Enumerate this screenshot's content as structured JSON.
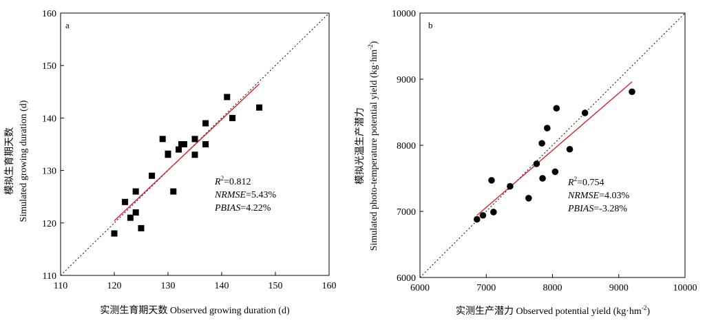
{
  "chart_data": [
    {
      "type": "scatter",
      "panel_label": "a",
      "xlabel_cn": "实测生育期天数",
      "xlabel_en": "Observed growing duration (d)",
      "ylabel_cn": "模拟生育期天数",
      "ylabel_en": "Simulated growing duration (d)",
      "xlim": [
        110,
        160
      ],
      "ylim": [
        110,
        160
      ],
      "xticks": [
        110,
        120,
        130,
        140,
        150,
        160
      ],
      "yticks": [
        110,
        120,
        130,
        140,
        150,
        160
      ],
      "marker": "square",
      "points": [
        {
          "x": 120,
          "y": 118
        },
        {
          "x": 122,
          "y": 124
        },
        {
          "x": 123,
          "y": 121
        },
        {
          "x": 124,
          "y": 126
        },
        {
          "x": 124,
          "y": 122
        },
        {
          "x": 125,
          "y": 119
        },
        {
          "x": 127,
          "y": 129
        },
        {
          "x": 129,
          "y": 136
        },
        {
          "x": 130,
          "y": 133
        },
        {
          "x": 130,
          "y": 133.2
        },
        {
          "x": 131,
          "y": 126
        },
        {
          "x": 132,
          "y": 134
        },
        {
          "x": 132.5,
          "y": 135
        },
        {
          "x": 133,
          "y": 135
        },
        {
          "x": 135,
          "y": 136
        },
        {
          "x": 135,
          "y": 133
        },
        {
          "x": 137,
          "y": 139
        },
        {
          "x": 137,
          "y": 135
        },
        {
          "x": 141,
          "y": 144
        },
        {
          "x": 142,
          "y": 140
        },
        {
          "x": 147,
          "y": 142
        }
      ],
      "fit_line": {
        "x1": 120,
        "y1": 120.4,
        "x2": 147,
        "y2": 146.5,
        "color": "#e0202a"
      },
      "one_to_one": {
        "from": 110,
        "to": 160
      },
      "stats": {
        "r2_label": "R",
        "r2_sup": "2",
        "r2_value": "=0.812",
        "nrmse_label": "NRMSE",
        "nrmse_value": "=5.43%",
        "pbias_label": "PBIAS",
        "pbias_value": "=4.22%"
      }
    },
    {
      "type": "scatter",
      "panel_label": "b",
      "xlabel_cn": "实测生产潜力",
      "xlabel_en": "Observed potential yield (kg·hm",
      "xlabel_sup": "-2",
      "xlabel_close": ")",
      "ylabel_cn": "模拟光温生产潜力",
      "ylabel_en": "Simulated photo-temperature potential yield (kg·hm",
      "ylabel_sup": "-2",
      "ylabel_close": ")",
      "xlim": [
        6000,
        10000
      ],
      "ylim": [
        6000,
        10000
      ],
      "xticks": [
        6000,
        7000,
        8000,
        9000,
        10000
      ],
      "yticks": [
        6000,
        7000,
        8000,
        9000,
        10000
      ],
      "marker": "circle",
      "points": [
        {
          "x": 6860,
          "y": 6880
        },
        {
          "x": 6950,
          "y": 6940
        },
        {
          "x": 7080,
          "y": 7470
        },
        {
          "x": 7110,
          "y": 6990
        },
        {
          "x": 7360,
          "y": 7380
        },
        {
          "x": 7640,
          "y": 7200
        },
        {
          "x": 7760,
          "y": 7720
        },
        {
          "x": 7840,
          "y": 8030
        },
        {
          "x": 7850,
          "y": 7500
        },
        {
          "x": 7920,
          "y": 8260
        },
        {
          "x": 8040,
          "y": 7600
        },
        {
          "x": 8060,
          "y": 8560
        },
        {
          "x": 8260,
          "y": 7940
        },
        {
          "x": 8490,
          "y": 8490
        },
        {
          "x": 9200,
          "y": 8810
        }
      ],
      "fit_line": {
        "x1": 6860,
        "y1": 6940,
        "x2": 9200,
        "y2": 8960,
        "color": "#e0202a"
      },
      "one_to_one": {
        "from": 6000,
        "to": 10000
      },
      "stats": {
        "r2_label": "R",
        "r2_sup": "2",
        "r2_value": "=0.754",
        "nrmse_label": "NRMSE",
        "nrmse_value": "=4.03%",
        "pbias_label": "PBIAS",
        "pbias_value": "=-3.28%"
      }
    }
  ]
}
